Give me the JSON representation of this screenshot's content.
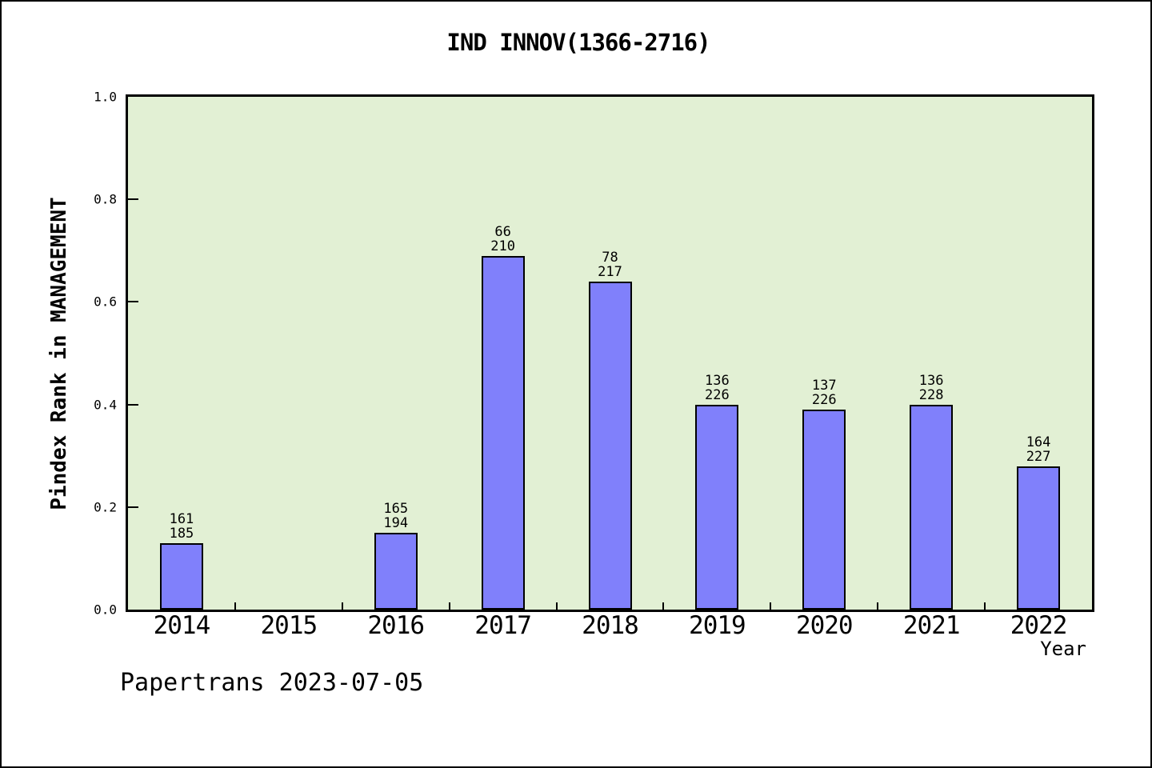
{
  "chart_data": {
    "type": "bar",
    "title": "IND INNOV(1366-2716)",
    "xlabel": "Year",
    "ylabel": "Pindex Rank in MANAGEMENT",
    "footer": "Papertrans 2023-07-05",
    "categories": [
      "2014",
      "2015",
      "2016",
      "2017",
      "2018",
      "2019",
      "2020",
      "2021",
      "2022"
    ],
    "values": [
      0.13,
      null,
      0.15,
      0.69,
      0.64,
      0.4,
      0.39,
      0.4,
      0.28
    ],
    "bar_labels": [
      [
        "161",
        "185"
      ],
      null,
      [
        "165",
        "194"
      ],
      [
        "66",
        "210"
      ],
      [
        "78",
        "217"
      ],
      [
        "136",
        "226"
      ],
      [
        "137",
        "226"
      ],
      [
        "136",
        "228"
      ],
      [
        "164",
        "227"
      ]
    ],
    "ylim": [
      0.0,
      1.0
    ],
    "yticks": [
      "0.0",
      "0.2",
      "0.4",
      "0.6",
      "0.8",
      "1.0"
    ],
    "grid": false,
    "legend": null,
    "colors": {
      "bar_fill": "#8080fb",
      "bar_edge": "#000000",
      "plot_bg": "#e2f0d4",
      "page_bg": "#ffffff",
      "frame": "#000000"
    }
  }
}
